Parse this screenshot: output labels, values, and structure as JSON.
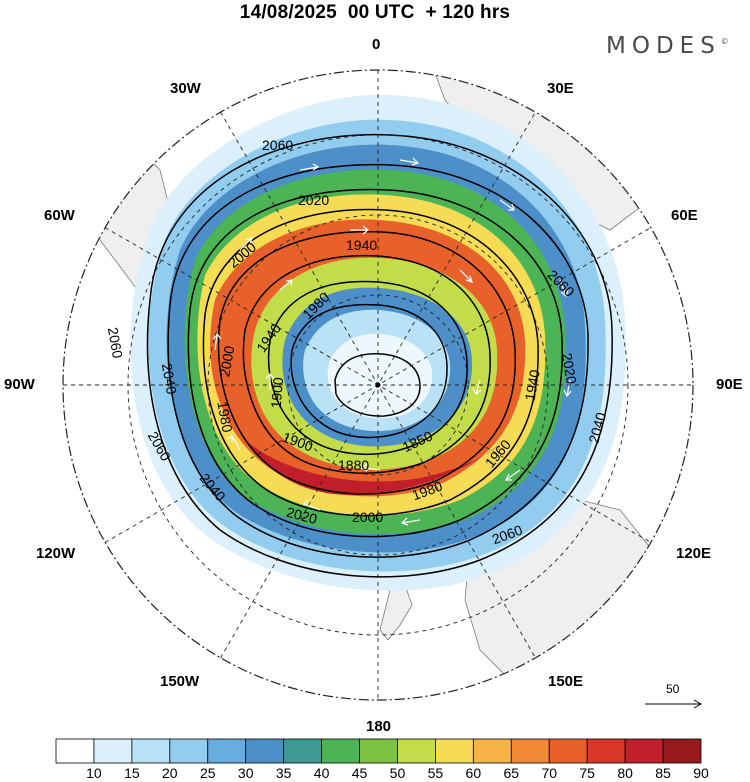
{
  "title": "14/08/2025  00 UTC  + 120 hrs",
  "brand": "MODES",
  "brand_mark": "©",
  "longitude_labels": {
    "lon_0": "0",
    "lon_30e": "30E",
    "lon_60e": "60E",
    "lon_90e": "90E",
    "lon_120e": "120E",
    "lon_150e": "150E",
    "lon_180": "180",
    "lon_150w": "150W",
    "lon_120w": "120W",
    "lon_90w": "90W",
    "lon_60w": "60W",
    "lon_30w": "30W"
  },
  "contour_labels": {
    "c2060_top": "2060",
    "c2020_top": "2020",
    "c1940_top": "1940",
    "c2000_nw": "2000",
    "c1980_nw": "1980",
    "c1940_w": "1940",
    "c2000_w": "2000",
    "c2060_w": "2060",
    "c2040_w": "2040",
    "c1900_w": "1900",
    "c1980_sw": "1980",
    "c1900_s": "1900",
    "c1880_s": "1880",
    "c1850_s": "1850",
    "c2060_sw": "2060",
    "c2040_sw": "2040",
    "c2020_s": "2020",
    "c2000_s": "2000",
    "c1980_s": "1980",
    "c1960_se": "1960",
    "c1940_e": "1940",
    "c2020_e": "2020",
    "c2040_e": "2040",
    "c2060_ne": "2060",
    "c2060_se": "2060"
  },
  "wind_reference": {
    "value": "50"
  },
  "colorbar": {
    "ticks": [
      "10",
      "15",
      "20",
      "25",
      "30",
      "35",
      "40",
      "45",
      "50",
      "55",
      "60",
      "65",
      "70",
      "75",
      "80",
      "85",
      "90"
    ],
    "colors": [
      "#ffffff",
      "#dcf0fb",
      "#b9e2f6",
      "#92cdef",
      "#68ade0",
      "#4d8fc8",
      "#3e9b93",
      "#4cb454",
      "#7ec241",
      "#c3dc4a",
      "#f6dc55",
      "#f6b347",
      "#f08a37",
      "#e8602a",
      "#d9372a",
      "#c01f2b",
      "#961a1c"
    ]
  }
}
